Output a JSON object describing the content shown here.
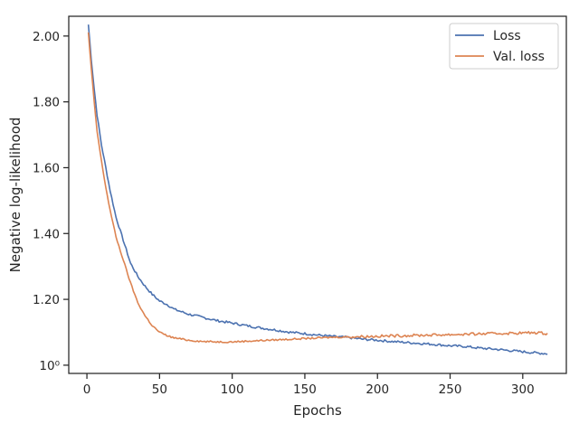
{
  "chart_data": {
    "type": "line",
    "title": "",
    "xlabel": "Epochs",
    "ylabel": "Negative log-likelihood",
    "xlim": [
      -12.5,
      330
    ],
    "ylim": [
      0.975,
      2.06
    ],
    "x_ticks": [
      0,
      50,
      100,
      150,
      200,
      250,
      300
    ],
    "y_ticks": [
      {
        "value": 1.0,
        "label": "10⁰"
      },
      {
        "value": 1.2,
        "label": "1.20"
      },
      {
        "value": 1.4,
        "label": "1.40"
      },
      {
        "value": 1.6,
        "label": "1.60"
      },
      {
        "value": 1.8,
        "label": "1.80"
      },
      {
        "value": 2.0,
        "label": "2.00"
      }
    ],
    "grid": false,
    "legend_position": "top-right",
    "series": [
      {
        "name": "Loss",
        "color": "#4c72b0",
        "x": [
          1,
          3,
          5,
          7,
          10,
          13,
          16,
          20,
          25,
          30,
          35,
          40,
          45,
          50,
          55,
          60,
          70,
          80,
          90,
          100,
          110,
          120,
          130,
          140,
          150,
          160,
          170,
          180,
          190,
          200,
          210,
          220,
          230,
          240,
          250,
          260,
          270,
          280,
          290,
          300,
          310,
          317
        ],
        "values": [
          2.035,
          1.93,
          1.84,
          1.76,
          1.67,
          1.6,
          1.53,
          1.45,
          1.38,
          1.31,
          1.27,
          1.24,
          1.215,
          1.195,
          1.185,
          1.17,
          1.155,
          1.145,
          1.135,
          1.128,
          1.12,
          1.113,
          1.107,
          1.1,
          1.096,
          1.091,
          1.087,
          1.084,
          1.079,
          1.076,
          1.072,
          1.069,
          1.066,
          1.063,
          1.059,
          1.057,
          1.052,
          1.049,
          1.045,
          1.041,
          1.037,
          1.035
        ]
      },
      {
        "name": "Val. loss",
        "color": "#dd8452",
        "x": [
          1,
          3,
          5,
          7,
          10,
          13,
          16,
          20,
          25,
          30,
          35,
          40,
          45,
          50,
          55,
          60,
          70,
          80,
          90,
          100,
          110,
          120,
          130,
          140,
          150,
          160,
          170,
          180,
          190,
          200,
          210,
          220,
          230,
          240,
          250,
          260,
          270,
          280,
          290,
          300,
          310,
          317
        ],
        "values": [
          2.01,
          1.9,
          1.8,
          1.71,
          1.62,
          1.54,
          1.47,
          1.39,
          1.32,
          1.25,
          1.19,
          1.15,
          1.12,
          1.1,
          1.09,
          1.083,
          1.076,
          1.072,
          1.071,
          1.071,
          1.073,
          1.075,
          1.077,
          1.079,
          1.081,
          1.083,
          1.085,
          1.086,
          1.087,
          1.088,
          1.089,
          1.09,
          1.091,
          1.092,
          1.093,
          1.094,
          1.095,
          1.096,
          1.097,
          1.098,
          1.099,
          1.096
        ]
      }
    ]
  }
}
